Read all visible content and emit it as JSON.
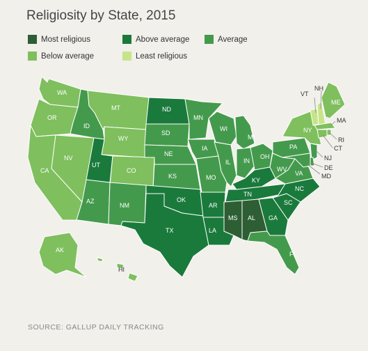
{
  "title": "Religiosity by State, 2015",
  "legend": [
    {
      "label": "Most religious",
      "color": "#2e5e34"
    },
    {
      "label": "Above average",
      "color": "#1a7a3c"
    },
    {
      "label": "Average",
      "color": "#449a4c"
    },
    {
      "label": "Below average",
      "color": "#7fbf5e"
    },
    {
      "label": "Least religious",
      "color": "#c6e58a"
    }
  ],
  "states": {
    "WA": "Below average",
    "OR": "Below average",
    "CA": "Below average",
    "NV": "Below average",
    "ID": "Average",
    "MT": "Below average",
    "WY": "Below average",
    "UT": "Above average",
    "CO": "Below average",
    "AZ": "Average",
    "NM": "Average",
    "ND": "Above average",
    "SD": "Average",
    "NE": "Average",
    "KS": "Average",
    "OK": "Above average",
    "TX": "Above average",
    "MN": "Average",
    "IA": "Average",
    "MO": "Average",
    "AR": "Above average",
    "LA": "Above average",
    "WI": "Average",
    "IL": "Average",
    "MI": "Average",
    "IN": "Average",
    "OH": "Average",
    "KY": "Above average",
    "TN": "Above average",
    "MS": "Most religious",
    "AL": "Most religious",
    "GA": "Above average",
    "FL": "Average",
    "SC": "Above average",
    "NC": "Above average",
    "VA": "Average",
    "WV": "Average",
    "PA": "Average",
    "NY": "Below average",
    "VT": "Least religious",
    "NH": "Least religious",
    "ME": "Below average",
    "MA": "Below average",
    "RI": "Below average",
    "CT": "Below average",
    "NJ": "Average",
    "DE": "Average",
    "MD": "Average",
    "AK": "Below average",
    "HI": "Below average"
  },
  "source": "SOURCE: GALLUP DAILY TRACKING"
}
